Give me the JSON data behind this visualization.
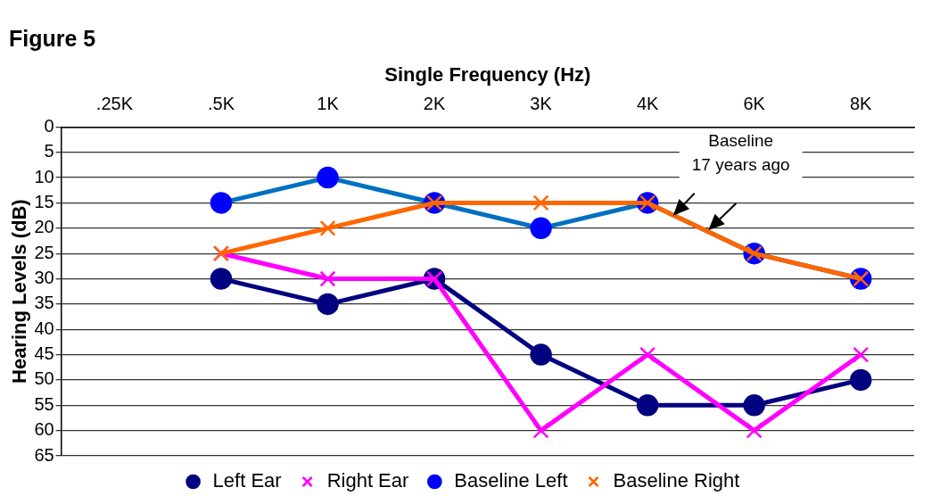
{
  "chart_data": {
    "type": "line",
    "title": "Figure 5",
    "xlabel": "Single Frequency (Hz)",
    "ylabel": "Hearing Levels (dB)",
    "categories": [
      ".25K",
      ".5K",
      "1K",
      "2K",
      "3K",
      "4K",
      "6K",
      "8K"
    ],
    "series": [
      {
        "name": "Left Ear",
        "color": "#000080",
        "marker": "circle",
        "values": [
          null,
          30,
          35,
          30,
          45,
          55,
          55,
          50
        ]
      },
      {
        "name": "Right Ear",
        "color": "#ff00ff",
        "marker": "cross",
        "values": [
          null,
          25,
          30,
          30,
          60,
          45,
          60,
          45
        ]
      },
      {
        "name": "Baseline Left",
        "color": "#0070c0",
        "marker": "circle",
        "values": [
          null,
          15,
          10,
          15,
          20,
          15,
          25,
          30
        ]
      },
      {
        "name": "Baseline Right",
        "color": "#ff6600",
        "marker": "cross",
        "values": [
          null,
          25,
          20,
          15,
          15,
          15,
          25,
          30
        ]
      }
    ],
    "ylim": [
      65,
      0
    ],
    "yticks": [
      0,
      5,
      10,
      15,
      20,
      25,
      30,
      35,
      40,
      45,
      50,
      55,
      60,
      65
    ],
    "grid": "y",
    "legend": "bottom",
    "line_style": "solid",
    "annotations": [
      "Baseline\n17 years ago"
    ]
  }
}
